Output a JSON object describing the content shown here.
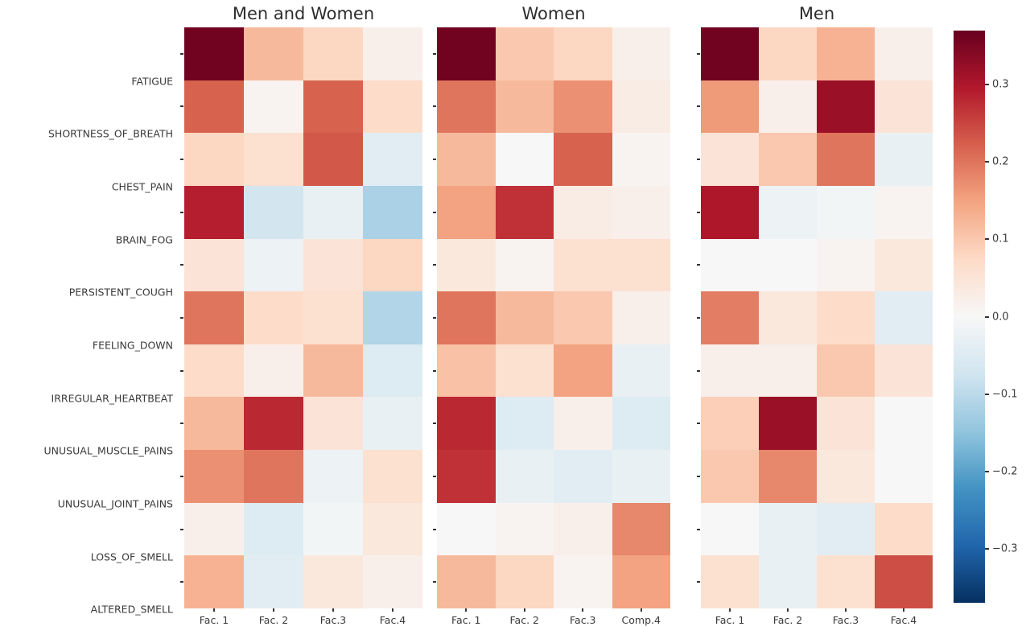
{
  "chart_data": {
    "type": "heatmap",
    "colormap": "RdBu_r",
    "value_range": [
      -0.37,
      0.37
    ],
    "grid": false,
    "rows": [
      "FATIGUE",
      "SHORTNESS_OF_BREATH",
      "CHEST_PAIN",
      "BRAIN_FOG",
      "PERSISTENT_COUGH",
      "FEELING_DOWN",
      "IRREGULAR_HEARTBEAT",
      "UNUSUAL_MUSCLE_PAINS",
      "UNUSUAL_JOINT_PAINS",
      "LOSS_OF_SMELL",
      "ALTERED_SMELL"
    ],
    "panels": [
      {
        "title": "Men and Women",
        "columns": [
          "Fac. 1",
          "Fac. 2",
          "Fac.3",
          "Fac.4"
        ],
        "values": [
          [
            0.36,
            0.12,
            0.08,
            0.02
          ],
          [
            0.22,
            0.01,
            0.22,
            0.07
          ],
          [
            0.08,
            0.06,
            0.23,
            -0.04
          ],
          [
            0.29,
            -0.07,
            -0.03,
            -0.12
          ],
          [
            0.05,
            -0.02,
            0.05,
            0.08
          ],
          [
            0.2,
            0.07,
            0.06,
            -0.11
          ],
          [
            0.07,
            0.02,
            0.12,
            -0.05
          ],
          [
            0.12,
            0.28,
            0.05,
            -0.03
          ],
          [
            0.17,
            0.2,
            -0.02,
            0.06
          ],
          [
            0.02,
            -0.05,
            -0.01,
            0.04
          ],
          [
            0.13,
            -0.04,
            0.04,
            0.02
          ]
        ]
      },
      {
        "title": "Women",
        "columns": [
          "Fac. 1",
          "Fac. 2",
          "Fac.3",
          "Comp.4"
        ],
        "values": [
          [
            0.36,
            0.1,
            0.08,
            0.02
          ],
          [
            0.2,
            0.12,
            0.17,
            0.03
          ],
          [
            0.12,
            0.0,
            0.22,
            0.01
          ],
          [
            0.15,
            0.27,
            0.03,
            0.02
          ],
          [
            0.04,
            0.01,
            0.06,
            0.06
          ],
          [
            0.2,
            0.12,
            0.1,
            0.02
          ],
          [
            0.11,
            0.06,
            0.15,
            -0.03
          ],
          [
            0.28,
            -0.05,
            0.02,
            -0.05
          ],
          [
            0.27,
            -0.03,
            -0.04,
            -0.03
          ],
          [
            0.0,
            0.01,
            0.02,
            0.18
          ],
          [
            0.12,
            0.08,
            0.01,
            0.15
          ]
        ]
      },
      {
        "title": "Men",
        "columns": [
          "Fac. 1",
          "Fac. 2",
          "Fac.3",
          "Fac.4"
        ],
        "values": [
          [
            0.36,
            0.08,
            0.13,
            0.02
          ],
          [
            0.16,
            0.02,
            0.32,
            0.05
          ],
          [
            0.05,
            0.1,
            0.2,
            -0.03
          ],
          [
            0.3,
            -0.02,
            -0.01,
            0.01
          ],
          [
            0.0,
            0.0,
            0.01,
            0.04
          ],
          [
            0.19,
            0.04,
            0.07,
            -0.04
          ],
          [
            0.02,
            0.02,
            0.1,
            0.05
          ],
          [
            0.09,
            0.32,
            0.05,
            0.0
          ],
          [
            0.1,
            0.18,
            0.04,
            0.0
          ],
          [
            0.0,
            -0.03,
            -0.04,
            0.07
          ],
          [
            0.06,
            -0.03,
            0.06,
            0.24
          ]
        ]
      }
    ],
    "colorbar": {
      "position": "right",
      "tick_labels": [
        "0.3",
        "0.2",
        "0.1",
        "0.0",
        "−0.1",
        "−0.2",
        "−0.3"
      ],
      "tick_values": [
        0.3,
        0.2,
        0.1,
        0.0,
        -0.1,
        -0.2,
        -0.3
      ]
    },
    "colormap_stops": [
      [
        1.0,
        "#67001f"
      ],
      [
        0.8,
        "#b2182b"
      ],
      [
        0.6,
        "#d6604d"
      ],
      [
        0.4,
        "#f4a582"
      ],
      [
        0.2,
        "#fddbc7"
      ],
      [
        0.0,
        "#f7f7f7"
      ],
      [
        -0.2,
        "#d1e5f0"
      ],
      [
        -0.4,
        "#92c5de"
      ],
      [
        -0.6,
        "#4393c3"
      ],
      [
        -0.8,
        "#2166ac"
      ],
      [
        -1.0,
        "#053061"
      ]
    ]
  }
}
